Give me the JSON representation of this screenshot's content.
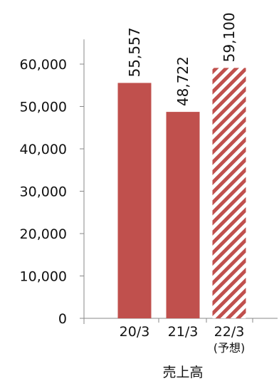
{
  "chart_data": {
    "type": "bar",
    "categories": [
      "20/3",
      "21/3",
      "22/3"
    ],
    "category_sublabels": [
      "",
      "",
      "(予想)"
    ],
    "values": [
      55557,
      48722,
      59100
    ],
    "value_labels": [
      "55,557",
      "48,722",
      "59,100"
    ],
    "forecast_flags": [
      false,
      false,
      true
    ],
    "y_ticks": [
      0,
      10000,
      20000,
      30000,
      40000,
      50000,
      60000
    ],
    "y_tick_labels": [
      "0",
      "10,000",
      "20,000",
      "30,000",
      "40,000",
      "50,000",
      "60,000"
    ],
    "ylim": [
      0,
      65000
    ],
    "title": "",
    "xlabel": "売上高",
    "ylabel": "",
    "grid": false,
    "colors": {
      "bar": "#c0504d",
      "hatch_bg": "#ffffff",
      "axis": "#888888"
    }
  }
}
